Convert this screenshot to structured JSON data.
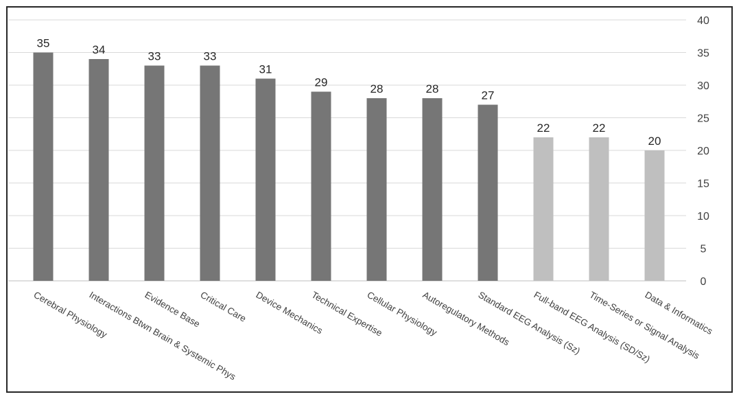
{
  "chart_data": {
    "type": "bar",
    "categories": [
      "Cerebral Physiology",
      "Interactions Btwn Brain & Systemic Phys",
      "Evidence Base",
      "Critical Care",
      "Device Mechanics",
      "Technical Expertise",
      "Cellular Physiology",
      "Autoregulatory Methods",
      "Standard EEG Analysis (Sz)",
      "Full-band EEG Analysis (SD/Sz)",
      "Time-Series or Signal Analysis",
      "Data & Informatics"
    ],
    "values": [
      35,
      34,
      33,
      33,
      31,
      29,
      28,
      28,
      27,
      22,
      22,
      20
    ],
    "data_labels": [
      "35",
      "34",
      "33",
      "33",
      "31",
      "29",
      "28",
      "28",
      "27",
      "22",
      "22",
      "20"
    ],
    "bar_colors": [
      "#767676",
      "#767676",
      "#767676",
      "#767676",
      "#767676",
      "#767676",
      "#767676",
      "#767676",
      "#767676",
      "#bfbfbf",
      "#bfbfbf",
      "#bfbfbf"
    ],
    "ylim": [
      0,
      40
    ],
    "y_ticks": [
      "0",
      "5",
      "10",
      "15",
      "20",
      "25",
      "30",
      "35",
      "40"
    ],
    "y_axis_side": "right",
    "grid": true,
    "title": "",
    "xlabel": "",
    "ylabel": ""
  }
}
